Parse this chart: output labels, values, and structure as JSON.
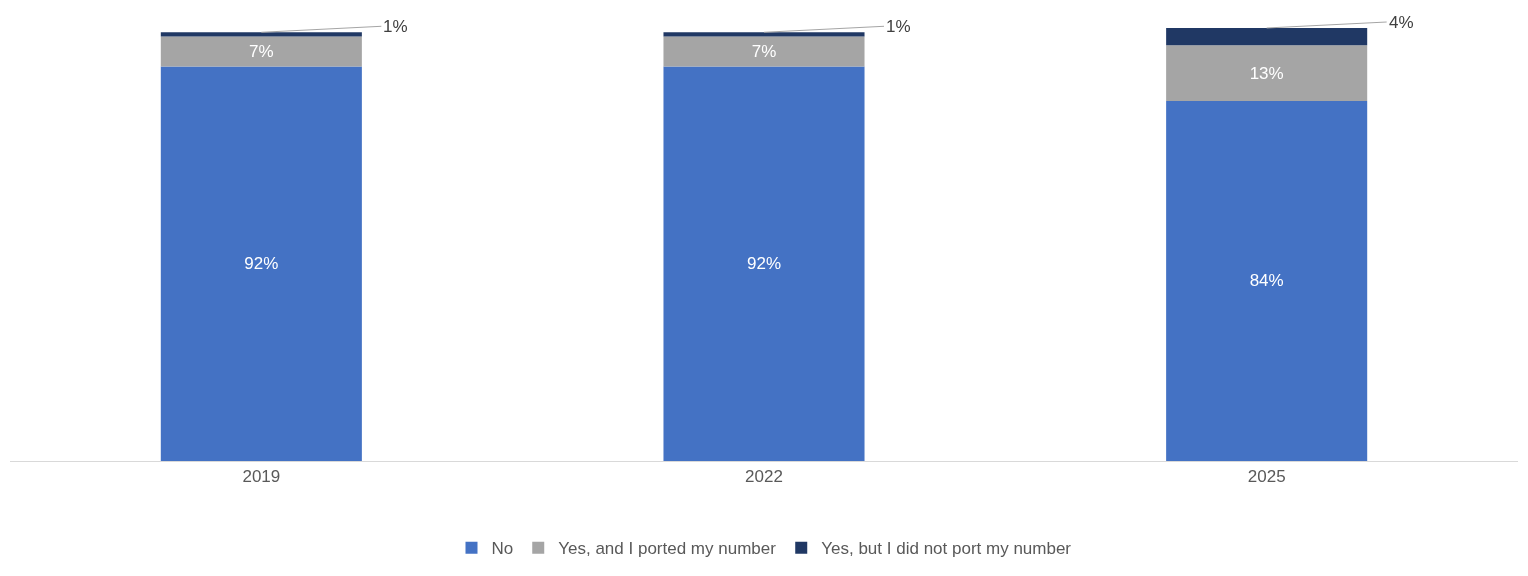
{
  "chart_data": {
    "type": "bar",
    "stacked": true,
    "categories": [
      "2019",
      "2022",
      "2025"
    ],
    "series": [
      {
        "name": "No",
        "color": "#4472c4",
        "values": [
          92,
          92,
          84
        ],
        "value_labels": [
          "92%",
          "92%",
          "84%"
        ]
      },
      {
        "name": "Yes, and I ported my number",
        "color": "#a5a5a5",
        "values": [
          7,
          7,
          13
        ],
        "value_labels": [
          "7%",
          "7%",
          "13%"
        ]
      },
      {
        "name": "Yes, but I did not port my number",
        "color": "#203864",
        "values": [
          1,
          1,
          4
        ],
        "value_labels": [
          "1%",
          "1%",
          "4%"
        ]
      }
    ],
    "tick_labels": "x",
    "legend": "bottom"
  }
}
